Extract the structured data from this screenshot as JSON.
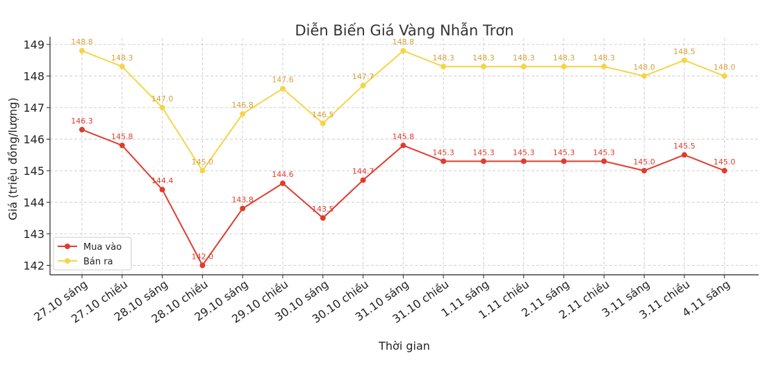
{
  "chart_data": {
    "type": "line",
    "title": "Diễn Biến Giá Vàng Nhẫn Trơn",
    "xlabel": "Thời gian",
    "ylabel": "Giá (triệu đồng/lượng)",
    "categories": [
      "27.10 sáng",
      "27.10 chiều",
      "28.10 sáng",
      "28.10 chiều",
      "29.10 sáng",
      "29.10 chiều",
      "30.10 sáng",
      "30.10 chiều",
      "31.10 sáng",
      "31.10 chiều",
      "1.11 sáng",
      "1.11 chiều",
      "2.11 sáng",
      "2.11 chiều",
      "3.11 sáng",
      "3.11 chiều",
      "4.11 sáng"
    ],
    "yticks": [
      142,
      143,
      144,
      145,
      146,
      147,
      148,
      149
    ],
    "ylim": [
      141.7,
      149.2
    ],
    "grid": true,
    "legend_position": "bottom-left",
    "series": [
      {
        "name": "Mua vào",
        "color": "#e03c2d",
        "label_color": "#e03c2d",
        "values": [
          146.3,
          145.8,
          144.4,
          142.0,
          143.8,
          144.6,
          143.5,
          144.7,
          145.8,
          145.3,
          145.3,
          145.3,
          145.3,
          145.3,
          145.0,
          145.5,
          145.0
        ],
        "labels": [
          "146.3",
          "145.8",
          "144.4",
          "142.0",
          "143.8",
          "144.6",
          "143.5",
          "144.7",
          "145.8",
          "145.3",
          "145.3",
          "145.3",
          "145.3",
          "145.3",
          "145.0",
          "145.5",
          "145.0"
        ]
      },
      {
        "name": "Bán ra",
        "color": "#f5d547",
        "label_color": "#d4a03a",
        "values": [
          148.8,
          148.3,
          147.0,
          145.0,
          146.8,
          147.6,
          146.5,
          147.7,
          148.8,
          148.3,
          148.3,
          148.3,
          148.3,
          148.3,
          148.0,
          148.5,
          148.0
        ],
        "labels": [
          "148.8",
          "148.3",
          "147.0",
          "145.0",
          "146.8",
          "147.6",
          "146.5",
          "147.7",
          "148.8",
          "148.3",
          "148.3",
          "148.3",
          "148.3",
          "148.3",
          "148.0",
          "148.5",
          "148.0"
        ]
      }
    ]
  }
}
